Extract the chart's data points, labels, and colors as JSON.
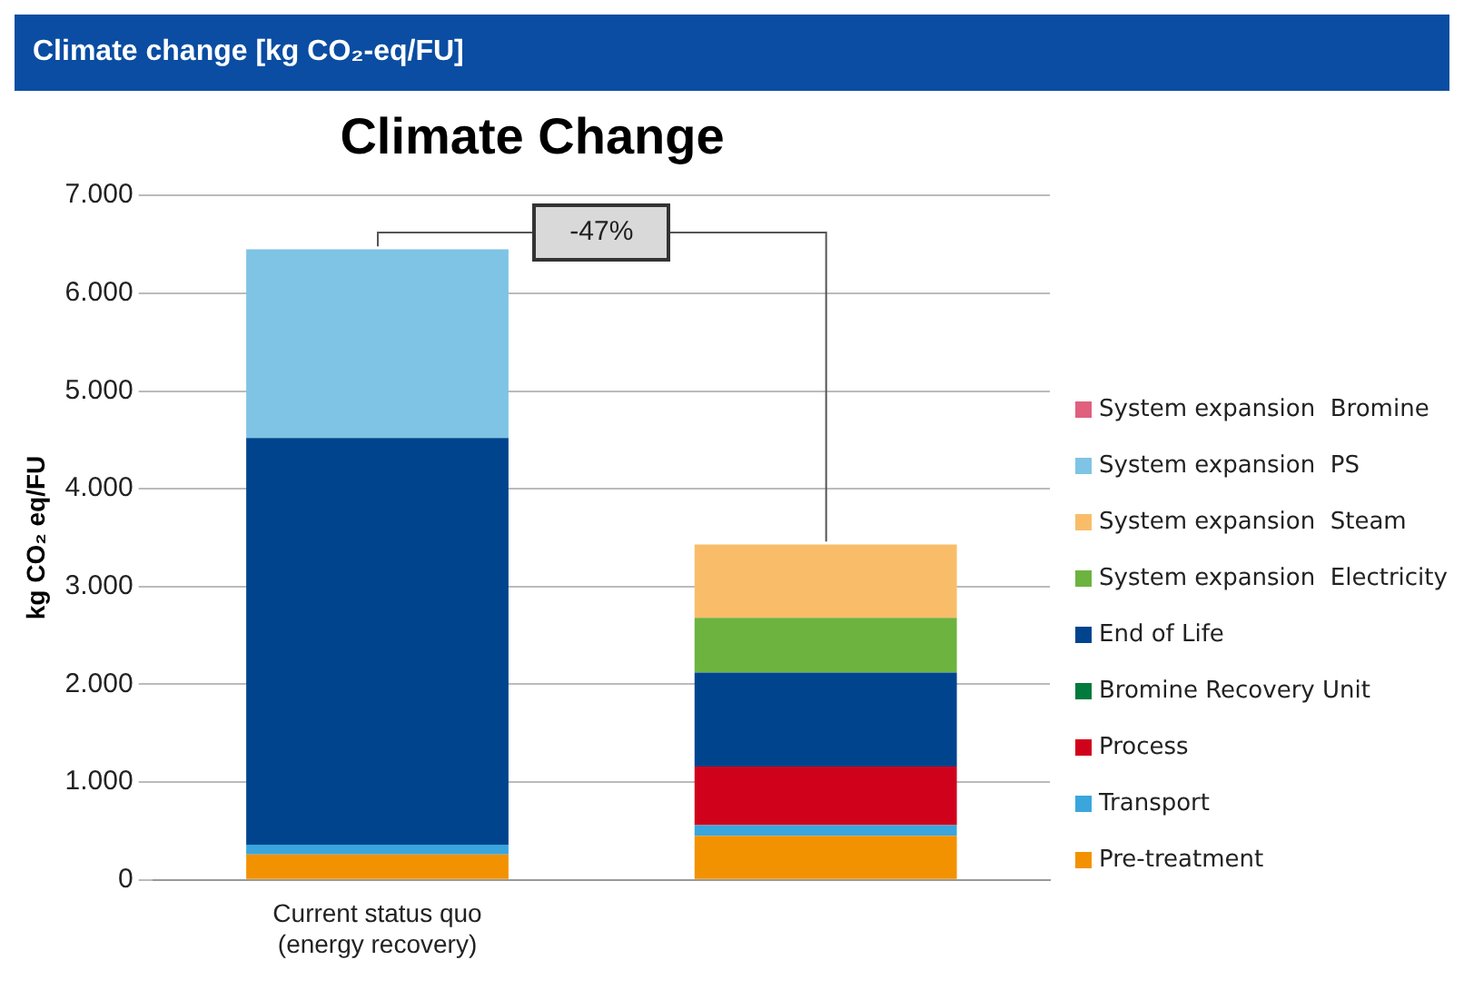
{
  "chart_data": {
    "type": "bar",
    "title": "Climate change [kg CO₂-eq/FU]",
    "subtitle": "Climate Change",
    "ylabel": "kg CO₂ eq/FU",
    "categories": [
      "Current status quo (energy recovery)",
      null
    ],
    "stacked": true,
    "ylim": [
      0,
      7000
    ],
    "yticks": [
      {
        "value": 0,
        "label": "0"
      },
      {
        "value": 1000,
        "label": "1.000"
      },
      {
        "value": 2000,
        "label": "2.000"
      },
      {
        "value": 3000,
        "label": "3.000"
      },
      {
        "value": 4000,
        "label": "4.000"
      },
      {
        "value": 5000,
        "label": "5.000"
      },
      {
        "value": 6000,
        "label": "6.000"
      },
      {
        "value": 7000,
        "label": "7.000"
      }
    ],
    "grid": "y",
    "legend": "right",
    "series": [
      {
        "name": "Pre-treatment",
        "color": "#f39200",
        "values": [
          260,
          450
        ]
      },
      {
        "name": "Transport",
        "color": "#3aa6dc",
        "values": [
          100,
          110
        ]
      },
      {
        "name": "Process",
        "color": "#d0021b",
        "values": [
          0,
          600
        ]
      },
      {
        "name": "Bromine Recovery Unit",
        "color": "#007a3d",
        "values": [
          0,
          0
        ]
      },
      {
        "name": "End of Life",
        "color": "#00448e",
        "values": [
          4160,
          960
        ]
      },
      {
        "name": "System expansion  Electricity",
        "color": "#6cb33f",
        "values": [
          0,
          560
        ]
      },
      {
        "name": "System expansion  Steam",
        "color": "#f9bd6a",
        "values": [
          0,
          750
        ]
      },
      {
        "name": "System expansion  PS",
        "color": "#7fc4e4",
        "values": [
          1930,
          0
        ]
      },
      {
        "name": "System expansion  Bromine",
        "color": "#e0607e",
        "values": [
          0,
          0
        ]
      }
    ],
    "annotations": [
      "-47%"
    ]
  }
}
